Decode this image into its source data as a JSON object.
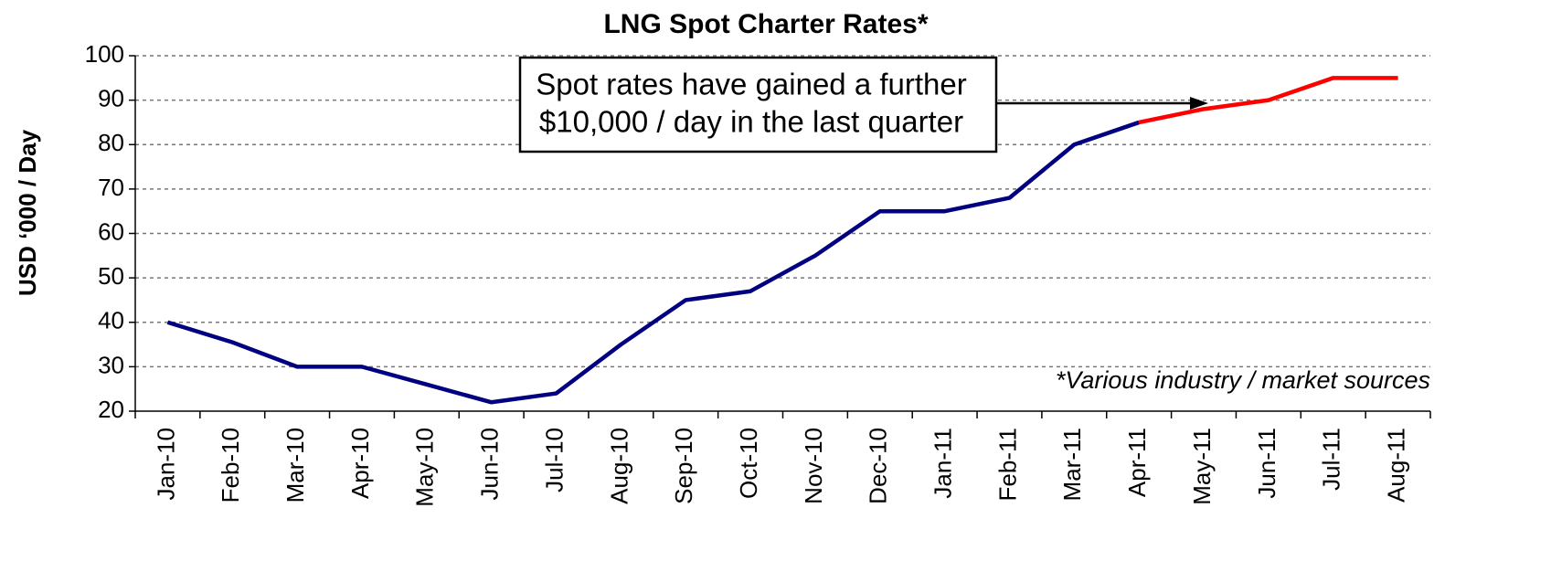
{
  "chart_data": {
    "type": "line",
    "title": "LNG Spot Charter Rates*",
    "y_label": "USD ‘000 / Day",
    "annotation": [
      "Spot rates have gained a further",
      "$10,000 / day in the last quarter"
    ],
    "note": "*Various industry / market sources",
    "categories": [
      "Jan-10",
      "Feb-10",
      "Mar-10",
      "Apr-10",
      "May-10",
      "Jun-10",
      "Jul-10",
      "Aug-10",
      "Sep-10",
      "Oct-10",
      "Nov-10",
      "Dec-10",
      "Jan-11",
      "Feb-11",
      "Mar-11",
      "Apr-11",
      "May-11",
      "Jun-11",
      "Jul-11",
      "Aug-11"
    ],
    "series": [
      {
        "color": "#000080",
        "values": [
          40,
          35.5,
          30,
          30,
          26,
          22,
          24,
          35,
          45,
          47,
          55,
          65,
          65,
          68,
          80,
          85,
          null,
          null,
          null,
          null
        ]
      },
      {
        "color": "#ff0000",
        "values": [
          null,
          null,
          null,
          null,
          null,
          null,
          null,
          null,
          null,
          null,
          null,
          null,
          null,
          null,
          null,
          85,
          88,
          90,
          95,
          95
        ]
      }
    ],
    "ylim": [
      20,
      100
    ],
    "yticks": [
      20,
      30,
      40,
      50,
      60,
      70,
      80,
      90,
      100
    ],
    "grid": true
  }
}
